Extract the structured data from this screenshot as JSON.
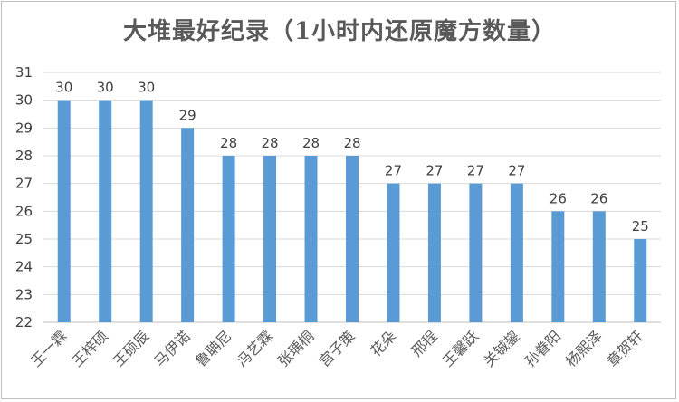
{
  "colors": {
    "bar": "#5b9bd5",
    "grid": "#d9d9d9",
    "axis": "#bfbfbf"
  },
  "chart_data": {
    "type": "bar",
    "title": "大堆最好纪录（1小时内还原魔方数量）",
    "categories": [
      "王一霖",
      "王梓硕",
      "王硕辰",
      "马伊诺",
      "鲁聃尼",
      "冯艺霖",
      "张瑀桐",
      "宫子策",
      "花朵",
      "邢程",
      "王馨跃",
      "关铖鋆",
      "孙眷阳",
      "杨熙泽",
      "章贺轩"
    ],
    "values": [
      30,
      30,
      30,
      29,
      28,
      28,
      28,
      28,
      27,
      27,
      27,
      27,
      26,
      26,
      25
    ],
    "yticks": [
      22,
      23,
      24,
      25,
      26,
      27,
      28,
      29,
      30,
      31
    ],
    "ylim": [
      22,
      31
    ],
    "grid": true,
    "data_labels": true
  }
}
